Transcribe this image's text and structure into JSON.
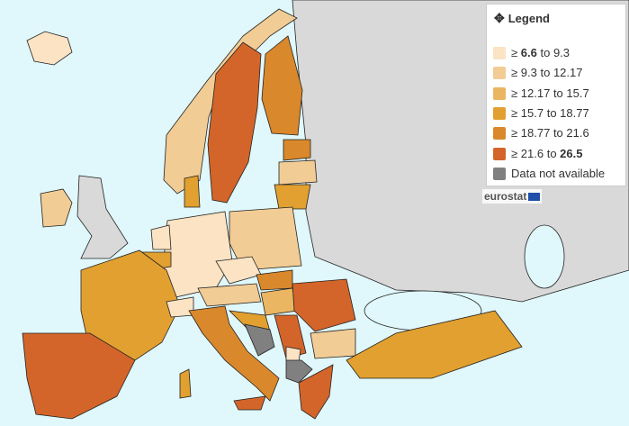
{
  "legend": {
    "title": "Legend",
    "items": [
      {
        "symbol": "≥",
        "low": "6.6",
        "joiner": "to",
        "high": "9.3",
        "color": "#fbe3c4"
      },
      {
        "symbol": "≥",
        "low": "9.3",
        "joiner": "to",
        "high": "12.17",
        "color": "#f2cc95"
      },
      {
        "symbol": "≥",
        "low": "12.17",
        "joiner": "to",
        "high": "15.7",
        "color": "#eab662"
      },
      {
        "symbol": "≥",
        "low": "15.7",
        "joiner": "to",
        "high": "18.77",
        "color": "#e1a030"
      },
      {
        "symbol": "≥",
        "low": "18.77",
        "joiner": "to",
        "high": "21.6",
        "color": "#da882c"
      },
      {
        "symbol": "≥",
        "low": "21.6",
        "joiner": "to",
        "high": "26.5",
        "color": "#d3652a"
      },
      {
        "label": "Data not available",
        "color": "#808080"
      }
    ]
  },
  "brand": "eurostat"
}
